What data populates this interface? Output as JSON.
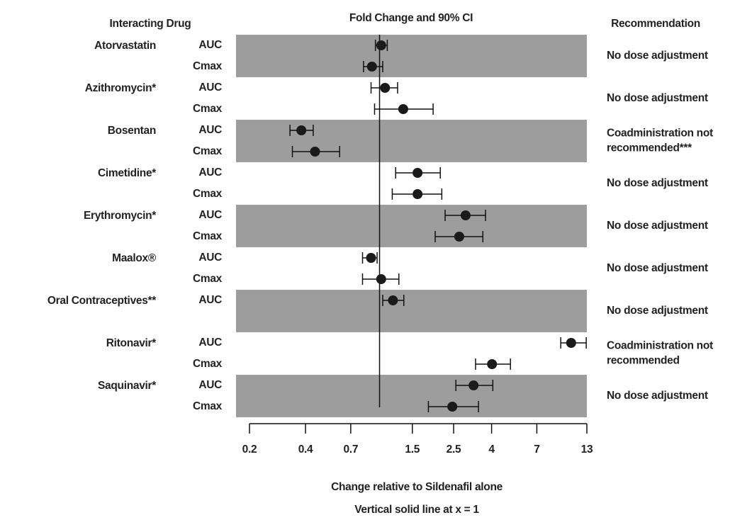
{
  "chart_data": {
    "type": "forest",
    "title": "Fold Change and 90% CI",
    "drug_header": "Interacting Drug",
    "recommendation_header": "Recommendation",
    "xlabel": "Change relative to Sildenafil alone",
    "note": "Vertical solid line at x = 1",
    "log_scale": true,
    "xlim": [
      0.2,
      13
    ],
    "xticks": [
      0.2,
      0.4,
      0.7,
      1.5,
      2.5,
      4,
      7,
      13
    ],
    "reference_line": 1,
    "band_color": "#9d9d9d",
    "marker_color": "#1a1a1a",
    "groups": [
      {
        "drug": "Atorvastatin",
        "shaded": true,
        "recommendation": [
          "No dose adjustment"
        ],
        "rows": [
          {
            "measure": "AUC",
            "value": 1.02,
            "lo": 0.95,
            "hi": 1.1
          },
          {
            "measure": "Cmax",
            "value": 0.91,
            "lo": 0.82,
            "hi": 1.04
          }
        ]
      },
      {
        "drug": "Azithromycin*",
        "shaded": false,
        "recommendation": [
          "No dose adjustment"
        ],
        "rows": [
          {
            "measure": "AUC",
            "value": 1.07,
            "lo": 0.9,
            "hi": 1.25
          },
          {
            "measure": "Cmax",
            "value": 1.34,
            "lo": 0.94,
            "hi": 1.94
          }
        ]
      },
      {
        "drug": "Bosentan",
        "shaded": true,
        "recommendation": [
          "Coadministration not",
          "recommended***"
        ],
        "rows": [
          {
            "measure": "AUC",
            "value": 0.38,
            "lo": 0.33,
            "hi": 0.44
          },
          {
            "measure": "Cmax",
            "value": 0.45,
            "lo": 0.34,
            "hi": 0.61
          }
        ]
      },
      {
        "drug": "Cimetidine*",
        "shaded": false,
        "recommendation": [
          "No dose adjustment"
        ],
        "rows": [
          {
            "measure": "AUC",
            "value": 1.6,
            "lo": 1.22,
            "hi": 2.12
          },
          {
            "measure": "Cmax",
            "value": 1.6,
            "lo": 1.17,
            "hi": 2.16
          }
        ]
      },
      {
        "drug": "Erythromycin*",
        "shaded": true,
        "recommendation": [
          "No dose adjustment"
        ],
        "rows": [
          {
            "measure": "AUC",
            "value": 2.9,
            "lo": 2.25,
            "hi": 3.71
          },
          {
            "measure": "Cmax",
            "value": 2.68,
            "lo": 1.99,
            "hi": 3.59
          }
        ]
      },
      {
        "drug": "Maalox®",
        "shaded": false,
        "recommendation": [
          "No dose adjustment"
        ],
        "rows": [
          {
            "measure": "AUC",
            "value": 0.9,
            "lo": 0.81,
            "hi": 0.97
          },
          {
            "measure": "Cmax",
            "value": 1.02,
            "lo": 0.81,
            "hi": 1.27
          }
        ]
      },
      {
        "drug": "Oral Contraceptives**",
        "shaded": true,
        "recommendation": [
          "No dose adjustment"
        ],
        "rows": [
          {
            "measure": "AUC",
            "value": 1.18,
            "lo": 1.04,
            "hi": 1.35
          }
        ]
      },
      {
        "drug": "Ritonavir*",
        "shaded": false,
        "recommendation": [
          "Coadministration not",
          "recommended"
        ],
        "rows": [
          {
            "measure": "AUC",
            "value": 10.7,
            "lo": 9.41,
            "hi": 12.9
          },
          {
            "measure": "Cmax",
            "value": 4.02,
            "lo": 3.28,
            "hi": 5.05
          }
        ]
      },
      {
        "drug": "Saquinavir*",
        "shaded": true,
        "recommendation": [
          "No dose adjustment"
        ],
        "rows": [
          {
            "measure": "AUC",
            "value": 3.2,
            "lo": 2.57,
            "hi": 4.06
          },
          {
            "measure": "Cmax",
            "value": 2.46,
            "lo": 1.83,
            "hi": 3.4
          }
        ]
      }
    ]
  }
}
